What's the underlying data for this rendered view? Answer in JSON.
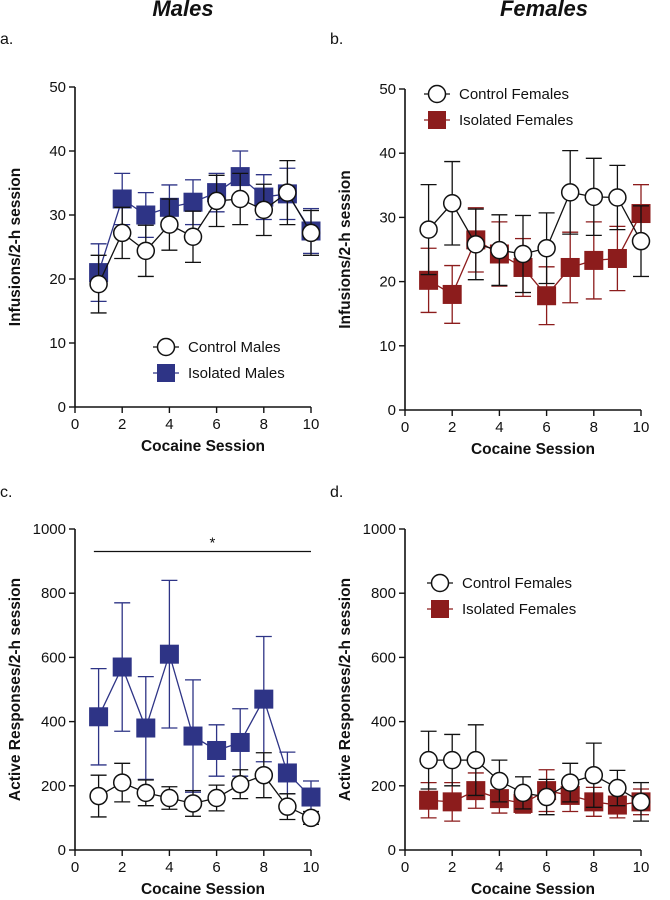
{
  "colors": {
    "control_fill": "#ffffff",
    "control_stroke": "#111111",
    "male_iso": "#2e3486",
    "female_iso": "#8c1c1c",
    "axis": "#111111"
  },
  "headers": {
    "males": "Males",
    "females": "Females"
  },
  "chart_data": [
    {
      "id": "a",
      "type": "line",
      "panel_label": "a.",
      "title": "",
      "xlabel": "Cocaine Session",
      "ylabel": "Infusions/2-h session",
      "xlim": [
        0,
        10
      ],
      "ylim": [
        0,
        50
      ],
      "xticks": [
        0,
        2,
        4,
        6,
        8,
        10
      ],
      "yticks": [
        0,
        10,
        20,
        30,
        40,
        50
      ],
      "legend_position": "bottom-right",
      "x": [
        1,
        2,
        3,
        4,
        5,
        6,
        7,
        8,
        9,
        10
      ],
      "series": [
        {
          "name": "Isolated Males",
          "marker": "square",
          "color": "#2e3486",
          "values": [
            21,
            32.5,
            30,
            31.2,
            32,
            33.5,
            36,
            32.8,
            33.3,
            27.5
          ],
          "err": [
            4.5,
            4.0,
            3.5,
            3.5,
            3.5,
            3.0,
            4.0,
            3.5,
            4.0,
            3.5
          ]
        },
        {
          "name": "Control Males",
          "marker": "circle",
          "color": "#111111",
          "values": [
            19.2,
            27.2,
            24.4,
            28.5,
            26.6,
            32.2,
            32.5,
            30.8,
            33.5,
            27.2
          ],
          "err": [
            4.5,
            4.0,
            4.0,
            4.0,
            4.0,
            4.0,
            4.0,
            4.0,
            5.0,
            3.5
          ]
        }
      ]
    },
    {
      "id": "b",
      "type": "line",
      "panel_label": "b.",
      "title": "",
      "xlabel": "Cocaine Session",
      "ylabel": "Infusions/2-h session",
      "xlim": [
        0,
        10
      ],
      "ylim": [
        0,
        50
      ],
      "xticks": [
        0,
        2,
        4,
        6,
        8,
        10
      ],
      "yticks": [
        0,
        10,
        20,
        30,
        40,
        50
      ],
      "legend_position": "top-left",
      "x": [
        1,
        2,
        3,
        4,
        5,
        6,
        7,
        8,
        9,
        10
      ],
      "series": [
        {
          "name": "Isolated Females",
          "marker": "square",
          "color": "#8c1c1c",
          "values": [
            20.2,
            18,
            26.5,
            24.3,
            22.2,
            17.8,
            22.2,
            23.3,
            23.6,
            30.6
          ],
          "err": [
            5.0,
            4.5,
            5.0,
            5.0,
            4.5,
            4.5,
            5.5,
            6.0,
            5.0,
            4.5
          ]
        },
        {
          "name": "Control Females",
          "marker": "circle",
          "color": "#111111",
          "values": [
            28.1,
            32.2,
            25.8,
            24.9,
            24.3,
            25.2,
            33.9,
            33.2,
            33.1,
            26.3
          ],
          "err": [
            7.0,
            6.5,
            5.5,
            5.5,
            6.0,
            5.5,
            6.5,
            6.0,
            5.0,
            5.5
          ]
        }
      ]
    },
    {
      "id": "c",
      "type": "line",
      "panel_label": "c.",
      "title": "",
      "xlabel": "Cocaine Session",
      "ylabel": "Active Responses/2-h session",
      "xlim": [
        0,
        10
      ],
      "ylim": [
        0,
        1000
      ],
      "xticks": [
        0,
        2,
        4,
        6,
        8,
        10
      ],
      "yticks": [
        0,
        200,
        400,
        600,
        800,
        1000
      ],
      "legend_position": "none",
      "annotation": {
        "text": "*",
        "x_from": 0.8,
        "x_to": 10,
        "y": 930
      },
      "x": [
        1,
        2,
        3,
        4,
        5,
        6,
        7,
        8,
        9,
        10
      ],
      "series": [
        {
          "name": "Isolated Males",
          "marker": "square",
          "color": "#2e3486",
          "values": [
            415,
            570,
            380,
            610,
            355,
            310,
            335,
            470,
            240,
            165
          ],
          "err": [
            150,
            200,
            160,
            230,
            175,
            80,
            105,
            195,
            65,
            50
          ]
        },
        {
          "name": "Control Males",
          "marker": "circle",
          "color": "#111111",
          "values": [
            168,
            210,
            178,
            162,
            145,
            162,
            205,
            233,
            135,
            100
          ],
          "err": [
            65,
            60,
            40,
            35,
            40,
            40,
            45,
            70,
            40,
            20
          ]
        }
      ]
    },
    {
      "id": "d",
      "type": "line",
      "panel_label": "d.",
      "title": "",
      "xlabel": "Cocaine Session",
      "ylabel": "Active Responses/2-h session",
      "xlim": [
        0,
        10
      ],
      "ylim": [
        0,
        1000
      ],
      "xticks": [
        0,
        2,
        4,
        6,
        8,
        10
      ],
      "yticks": [
        0,
        200,
        400,
        600,
        800,
        1000
      ],
      "legend_position": "top-left",
      "x": [
        1,
        2,
        3,
        4,
        5,
        6,
        7,
        8,
        9,
        10
      ],
      "series": [
        {
          "name": "Isolated Females",
          "marker": "square",
          "color": "#8c1c1c",
          "values": [
            155,
            150,
            185,
            160,
            145,
            185,
            170,
            150,
            140,
            150
          ],
          "err": [
            55,
            60,
            55,
            45,
            30,
            65,
            50,
            45,
            40,
            40
          ]
        },
        {
          "name": "Control Females",
          "marker": "circle",
          "color": "#111111",
          "values": [
            280,
            280,
            280,
            215,
            178,
            165,
            210,
            233,
            193,
            150
          ],
          "err": [
            90,
            80,
            110,
            65,
            50,
            55,
            60,
            100,
            55,
            60
          ]
        }
      ]
    }
  ]
}
